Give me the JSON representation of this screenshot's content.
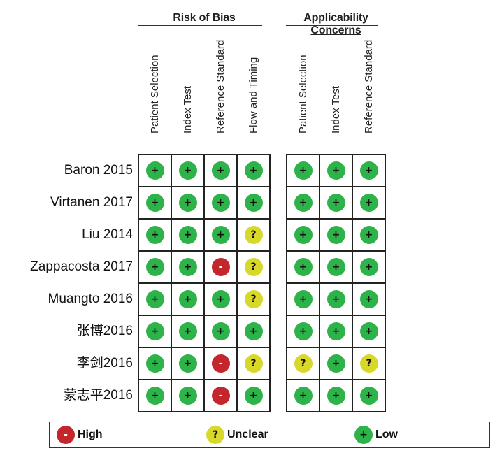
{
  "chart_data": {
    "type": "table",
    "groups": [
      {
        "title": "Risk of Bias",
        "columns": [
          "Patient Selection",
          "Index Test",
          "Reference Standard",
          "Flow and Timing"
        ]
      },
      {
        "title": "Applicability Concerns",
        "columns": [
          "Patient Selection",
          "Index Test",
          "Reference Standard"
        ]
      }
    ],
    "studies": [
      "Baron 2015",
      "Virtanen 2017",
      "Liu 2014",
      "Zappacosta 2017",
      "Muangto 2016",
      "张博2016",
      "李剑2016",
      "蒙志平2016"
    ],
    "ratings": [
      [
        [
          "low",
          "low",
          "low",
          "low"
        ],
        [
          "low",
          "low",
          "low"
        ]
      ],
      [
        [
          "low",
          "low",
          "low",
          "low"
        ],
        [
          "low",
          "low",
          "low"
        ]
      ],
      [
        [
          "low",
          "low",
          "low",
          "unclear"
        ],
        [
          "low",
          "low",
          "low"
        ]
      ],
      [
        [
          "low",
          "low",
          "high",
          "unclear"
        ],
        [
          "low",
          "low",
          "low"
        ]
      ],
      [
        [
          "low",
          "low",
          "low",
          "unclear"
        ],
        [
          "low",
          "low",
          "low"
        ]
      ],
      [
        [
          "low",
          "low",
          "low",
          "low"
        ],
        [
          "low",
          "low",
          "low"
        ]
      ],
      [
        [
          "low",
          "low",
          "high",
          "unclear"
        ],
        [
          "unclear",
          "low",
          "unclear"
        ]
      ],
      [
        [
          "low",
          "low",
          "high",
          "low"
        ],
        [
          "low",
          "low",
          "low"
        ]
      ]
    ],
    "symbols": {
      "low": "+",
      "unclear": "?",
      "high": "-"
    },
    "colors": {
      "low": "#2eb24a",
      "unclear": "#d8d82a",
      "high": "#c4272b"
    },
    "legend": [
      {
        "key": "high",
        "label": "High"
      },
      {
        "key": "unclear",
        "label": "Unclear"
      },
      {
        "key": "low",
        "label": "Low"
      }
    ]
  }
}
